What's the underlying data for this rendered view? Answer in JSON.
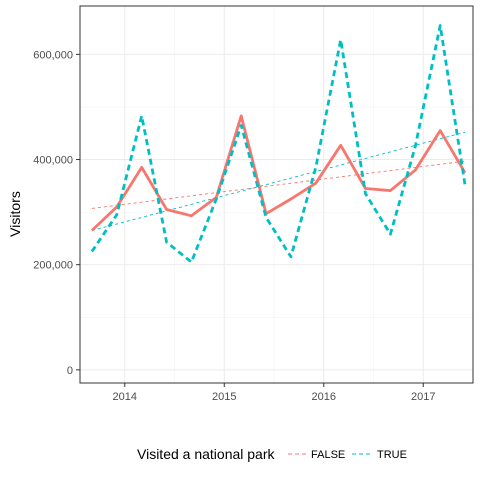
{
  "chart_data": {
    "type": "line",
    "ylabel": "Visitors",
    "xlabel": "",
    "xlim": [
      2013.55,
      2017.5
    ],
    "ylim": [
      -25000,
      692000
    ],
    "x_ticks": [
      2014,
      2015,
      2016,
      2017
    ],
    "x_tick_labels": [
      "2014",
      "2015",
      "2016",
      "2017"
    ],
    "y_ticks": [
      0,
      200000,
      400000,
      600000
    ],
    "y_tick_labels": [
      "0",
      "200,000",
      "400,000",
      "600,000"
    ],
    "grid": true,
    "legend": {
      "title": "Visited a national park",
      "position": "bottom",
      "entries": [
        "FALSE",
        "TRUE"
      ]
    },
    "series": [
      {
        "name": "FALSE",
        "color": "#F8766D",
        "x": [
          2013.67,
          2013.92,
          2014.17,
          2014.42,
          2014.67,
          2014.92,
          2015.17,
          2015.42,
          2015.67,
          2015.92,
          2016.17,
          2016.42,
          2016.67,
          2016.92,
          2017.17,
          2017.42
        ],
        "values": [
          265000,
          310000,
          385000,
          305000,
          293000,
          328000,
          483000,
          297000,
          325000,
          355000,
          427000,
          345000,
          341000,
          380000,
          455000,
          375000
        ],
        "trend": [
          307000,
          397000
        ]
      },
      {
        "name": "TRUE",
        "color": "#00BFC4",
        "x": [
          2013.67,
          2013.92,
          2014.17,
          2014.42,
          2014.67,
          2014.92,
          2015.17,
          2015.42,
          2015.67,
          2015.92,
          2016.17,
          2016.42,
          2016.67,
          2016.92,
          2017.17,
          2017.42
        ],
        "values": [
          225000,
          295000,
          483000,
          243000,
          205000,
          325000,
          465000,
          290000,
          215000,
          385000,
          628000,
          335000,
          258000,
          425000,
          655000,
          352000
        ],
        "trend": [
          265000,
          452000
        ]
      }
    ]
  }
}
